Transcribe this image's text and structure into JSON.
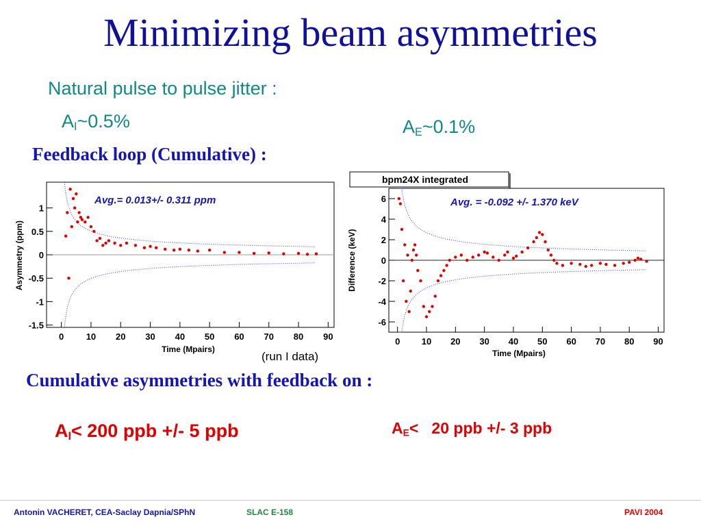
{
  "slide": {
    "title": "Minimizing beam asymmetries",
    "jitter_heading": "Natural pulse to pulse jitter :",
    "jitter_ai": {
      "base": "A",
      "sub": "I",
      "rest": "~0.5%"
    },
    "jitter_ae": {
      "base": "A",
      "sub": "E",
      "rest": "~0.1%"
    },
    "feedback_heading": "Feedback loop  (Cumulative) :",
    "run_note": "(run I data)",
    "cumulative_heading": "Cumulative asymmetries with feedback on :",
    "result_ai": {
      "base": "A",
      "sub": "I",
      "rest": "< 200 ppb +/- 5 ppb"
    },
    "result_ae": {
      "base": "A",
      "sub": "E",
      "rest": "<   20 ppb +/- 3 ppb"
    }
  },
  "footer": {
    "author": "Antonin VACHERET,  CEA-Saclay  Dapnia/SPhN",
    "experiment": "SLAC E-158",
    "conference": "PAVI 2004"
  },
  "colors": {
    "title": "#10109a",
    "teal": "#108888",
    "blue": "#1515b5",
    "red": "#e00000",
    "footer_green": "#1f8a3a"
  },
  "chart_data": [
    {
      "type": "scatter",
      "title": "",
      "xlabel": "Time (Mpairs)",
      "ylabel": "Asymmetry (ppm)",
      "xlim": [
        -5,
        92
      ],
      "ylim": [
        -1.55,
        1.55
      ],
      "xticks": [
        0,
        10,
        20,
        30,
        40,
        50,
        60,
        70,
        80,
        90
      ],
      "yticks": [
        -1.5,
        -1,
        -0.5,
        0,
        0.5,
        1
      ],
      "ytick_labels": [
        "-1.5",
        "-1",
        "-0.5",
        "0",
        "0.5",
        "1"
      ],
      "annotation": "Avg.=  0.013+/-  0.311  ppm",
      "band_scale": 1.6,
      "series": [
        {
          "x": [
            1.5,
            2.0,
            2.5,
            3.0,
            3.5,
            4.0,
            4.5,
            5.0,
            5.5,
            6.0,
            6.5,
            7.0,
            8.0,
            9.0,
            10.0,
            11.0,
            12.0,
            13.0,
            14.0,
            15.0,
            16.0,
            18.0,
            20.0,
            22.0,
            25.0,
            28.0,
            30.0,
            32.0,
            35.0,
            38.0,
            40.0,
            43.0,
            46.0,
            50.0,
            55.0,
            60.0,
            65.0,
            70.0,
            75.0,
            80.0,
            83.0,
            86.0
          ],
          "y": [
            0.4,
            0.9,
            -0.5,
            1.4,
            0.6,
            1.2,
            1.0,
            1.3,
            0.7,
            0.9,
            0.8,
            0.75,
            0.7,
            0.8,
            0.6,
            0.5,
            0.3,
            0.35,
            0.2,
            0.25,
            0.3,
            0.25,
            0.2,
            0.25,
            0.2,
            0.15,
            0.18,
            0.15,
            0.12,
            0.1,
            0.12,
            0.1,
            0.08,
            0.1,
            0.05,
            0.05,
            0.03,
            0.04,
            0.02,
            0.03,
            0.01,
            0.02
          ]
        }
      ]
    },
    {
      "type": "scatter",
      "title": "bpm24X integrated",
      "xlabel": "Time (Mpairs)",
      "ylabel": "Difference (keV)",
      "xlim": [
        -3,
        92
      ],
      "ylim": [
        -7,
        7
      ],
      "xticks": [
        0,
        10,
        20,
        30,
        40,
        50,
        60,
        70,
        80,
        90
      ],
      "yticks": [
        -6,
        -4,
        -2,
        0,
        2,
        4,
        6
      ],
      "ytick_labels": [
        "-6",
        "-4",
        "-2",
        "0",
        "2",
        "4",
        "6"
      ],
      "annotation": "Avg. = -0.092 +/-  1.370 keV",
      "band_scale": 8.5,
      "series": [
        {
          "x": [
            0.5,
            1.0,
            1.5,
            2.0,
            2.5,
            3.0,
            3.5,
            4.0,
            4.5,
            5.0,
            5.5,
            6.0,
            6.5,
            7.0,
            8.0,
            9.0,
            10.0,
            11.0,
            12.0,
            13.0,
            14.0,
            15.0,
            16.0,
            17.0,
            18.0,
            20.0,
            22.0,
            24.0,
            26.0,
            28.0,
            30.0,
            31.0,
            33.0,
            35.0,
            37.0,
            38.0,
            40.0,
            41.0,
            43.0,
            45.0,
            47.0,
            48.0,
            49.0,
            50.0,
            51.0,
            52.0,
            53.0,
            54.0,
            55.0,
            57.0,
            60.0,
            63.0,
            65.0,
            67.0,
            70.0,
            72.0,
            75.0,
            78.0,
            80.0,
            82.0,
            83.0,
            84.0,
            86.0
          ],
          "y": [
            6.0,
            5.5,
            3.0,
            -2.0,
            1.5,
            -4.0,
            0.5,
            -5.0,
            -3.0,
            0.0,
            1.0,
            1.5,
            0.5,
            -1.0,
            -2.0,
            -4.5,
            -5.5,
            -5.0,
            -4.5,
            -3.5,
            -2.0,
            -1.5,
            -1.0,
            -0.5,
            0.0,
            0.3,
            0.5,
            0.0,
            0.3,
            0.5,
            0.8,
            0.7,
            0.3,
            0.0,
            0.5,
            0.8,
            0.2,
            0.4,
            0.8,
            1.2,
            1.8,
            2.2,
            2.7,
            2.5,
            1.8,
            1.0,
            0.5,
            0.0,
            -0.3,
            -0.5,
            -0.3,
            -0.4,
            -0.6,
            -0.5,
            -0.3,
            -0.4,
            -0.5,
            -0.3,
            -0.2,
            0.0,
            0.2,
            0.1,
            -0.1
          ]
        }
      ]
    }
  ]
}
